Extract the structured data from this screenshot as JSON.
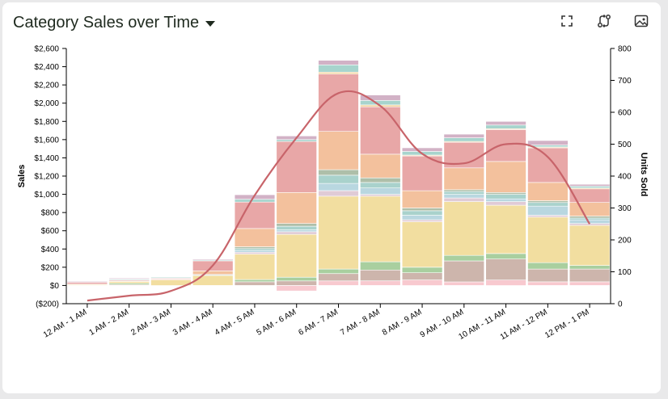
{
  "header": {
    "title": "Category Sales over Time"
  },
  "toolbar": {
    "icons": [
      "fullscreen-icon",
      "swap-icon",
      "image-icon"
    ]
  },
  "chart_data": {
    "type": "bar",
    "title": "Category Sales over Time",
    "categories": [
      "12 AM - 1 AM",
      "1 AM - 2 AM",
      "2 AM - 3 AM",
      "3 AM - 4 AM",
      "4 AM - 5 AM",
      "5 AM - 6 AM",
      "6 AM - 7 AM",
      "7 AM - 8 AM",
      "8 AM - 9 AM",
      "9 AM - 10 AM",
      "10 AM - 11 AM",
      "11 AM - 12 PM",
      "12 PM - 1 PM"
    ],
    "ylabel": "Sales",
    "y2label": "Units Sold",
    "ylim": [
      -200,
      2600
    ],
    "y2lim": [
      0,
      800
    ],
    "yticks": [
      "($200)",
      "$0",
      "$200",
      "$400",
      "$600",
      "$800",
      "$1,000",
      "$1,200",
      "$1,400",
      "$1,600",
      "$1,800",
      "$2,000",
      "$2,200",
      "$2,400",
      "$2,600"
    ],
    "y2ticks": [
      "0",
      "100",
      "200",
      "300",
      "400",
      "500",
      "600",
      "700",
      "800"
    ],
    "stacked": true,
    "series": [
      {
        "color": "#f8c9cf",
        "values": [
          0,
          0,
          0,
          0,
          0,
          -60,
          50,
          50,
          60,
          40,
          60,
          40,
          40
        ]
      },
      {
        "color": "#cdb5ac",
        "values": [
          0,
          10,
          0,
          0,
          40,
          50,
          80,
          120,
          80,
          230,
          230,
          140,
          140
        ]
      },
      {
        "color": "#a9cf9f",
        "values": [
          0,
          15,
          0,
          0,
          25,
          40,
          50,
          90,
          60,
          60,
          60,
          70,
          40
        ]
      },
      {
        "color": "#f2dea0",
        "values": [
          10,
          20,
          60,
          110,
          280,
          470,
          800,
          720,
          500,
          590,
          530,
          500,
          440
        ]
      },
      {
        "color": "#e0cbd6",
        "values": [
          0,
          0,
          0,
          0,
          20,
          30,
          60,
          20,
          20,
          40,
          40,
          20,
          20
        ]
      },
      {
        "color": "#b9d7e0",
        "values": [
          0,
          0,
          0,
          10,
          20,
          20,
          80,
          70,
          50,
          40,
          30,
          100,
          40
        ]
      },
      {
        "color": "#a9d2cc",
        "values": [
          0,
          0,
          0,
          0,
          20,
          40,
          90,
          60,
          50,
          30,
          50,
          40,
          20
        ]
      },
      {
        "color": "#aebfa9",
        "values": [
          0,
          0,
          0,
          0,
          20,
          30,
          60,
          50,
          30,
          20,
          20,
          20,
          20
        ]
      },
      {
        "color": "#f3c19d",
        "values": [
          5,
          5,
          10,
          40,
          200,
          340,
          420,
          260,
          190,
          240,
          340,
          200,
          150
        ]
      },
      {
        "color": "#e8a7a7",
        "values": [
          20,
          10,
          10,
          110,
          290,
          560,
          630,
          520,
          380,
          280,
          350,
          380,
          150
        ]
      },
      {
        "color": "#f1d39d",
        "values": [
          0,
          0,
          0,
          0,
          0,
          0,
          20,
          20,
          10,
          10,
          10,
          10,
          10
        ]
      },
      {
        "color": "#a7d4cd",
        "values": [
          0,
          10,
          10,
          10,
          30,
          20,
          80,
          50,
          40,
          40,
          40,
          20,
          20
        ]
      },
      {
        "color": "#d2b2c6",
        "values": [
          10,
          10,
          0,
          10,
          50,
          40,
          50,
          60,
          40,
          40,
          40,
          50,
          20
        ]
      }
    ],
    "units_sold": [
      10,
      25,
      40,
      120,
      340,
      520,
      660,
      620,
      470,
      440,
      500,
      460,
      250
    ],
    "grid": false
  }
}
